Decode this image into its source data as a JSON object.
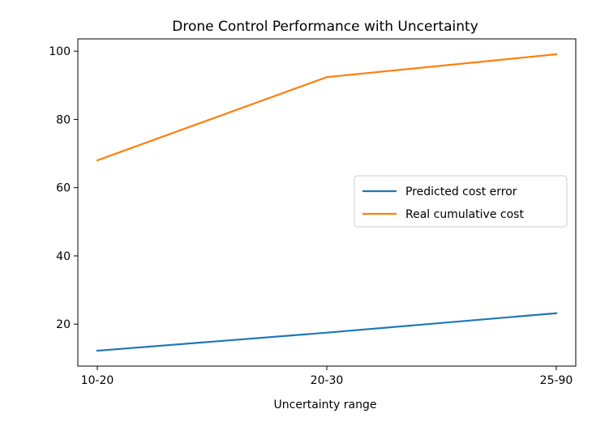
{
  "chart_data": {
    "type": "line",
    "title": "Drone Control Performance with Uncertainty",
    "xlabel": "Uncertainty range",
    "ylabel": "",
    "categories": [
      "10-20",
      "20-30",
      "25-90"
    ],
    "ylim": [
      7.7,
      103.6
    ],
    "yticks": [
      20,
      40,
      60,
      80,
      100
    ],
    "grid": false,
    "legend_position": "center-right",
    "series": [
      {
        "name": "Predicted cost error",
        "color": "#1f77b4",
        "values": [
          12.2,
          17.5,
          23.2
        ]
      },
      {
        "name": "Real cumulative cost",
        "color": "#ff7f0e",
        "values": [
          68.0,
          92.4,
          99.1
        ]
      }
    ]
  }
}
